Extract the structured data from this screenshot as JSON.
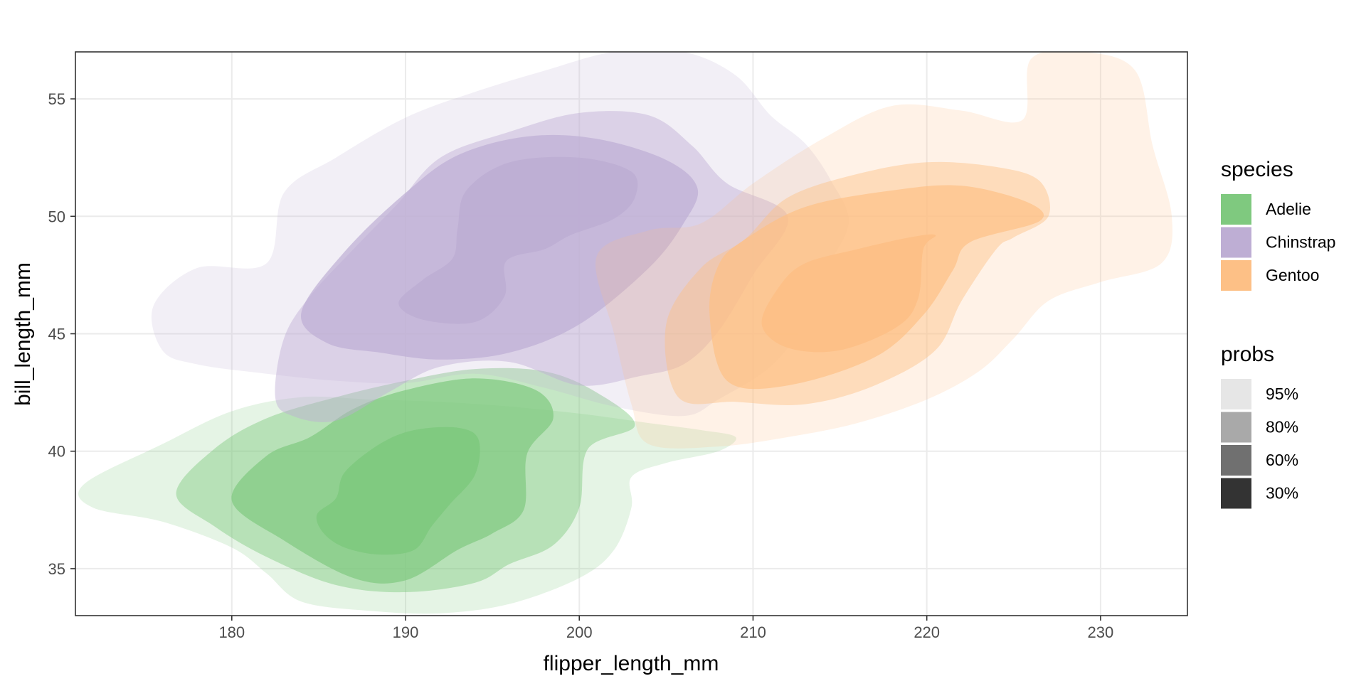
{
  "chart_data": {
    "type": "density-contour",
    "title": "",
    "xlabel": "flipper_length_mm",
    "ylabel": "bill_length_mm",
    "xlim": [
      171,
      235
    ],
    "ylim": [
      33,
      57
    ],
    "x_ticks": [
      180,
      190,
      200,
      210,
      220,
      230
    ],
    "y_ticks": [
      35,
      40,
      45,
      50,
      55
    ],
    "grid": true,
    "legend_placement": "right",
    "fill_levels": [
      {
        "label": "95%",
        "opacity": 0.2,
        "swatch_color": "#e6e6e6"
      },
      {
        "label": "80%",
        "opacity": 0.45,
        "swatch_color": "#a9a9a9"
      },
      {
        "label": "60%",
        "opacity": 0.7,
        "swatch_color": "#707070"
      },
      {
        "label": "30%",
        "opacity": 0.95,
        "swatch_color": "#333333"
      }
    ],
    "legends": [
      {
        "title": "species",
        "entries": [
          {
            "label": "Adelie",
            "color": "#7fc97f"
          },
          {
            "label": "Chinstrap",
            "color": "#beaed4"
          },
          {
            "label": "Gentoo",
            "color": "#fdc086"
          }
        ]
      },
      {
        "title": "probs",
        "entries": [
          {
            "label": "95%",
            "color": "#e6e6e6"
          },
          {
            "label": "80%",
            "color": "#a9a9a9"
          },
          {
            "label": "60%",
            "color": "#707070"
          },
          {
            "label": "30%",
            "color": "#333333"
          }
        ]
      }
    ],
    "series": [
      {
        "name": "Adelie",
        "color": "#7fc97f",
        "levels": [
          {
            "prob": "95%",
            "points": [
              [
                171.5,
                38.6
              ],
              [
                176,
                40.3
              ],
              [
                180,
                41.7
              ],
              [
                184,
                42.3
              ],
              [
                188,
                42.2
              ],
              [
                192,
                42.1
              ],
              [
                196,
                41.9
              ],
              [
                200,
                41.6
              ],
              [
                204,
                41.2
              ],
              [
                207,
                40.9
              ],
              [
                209,
                40.6
              ],
              [
                208,
                40
              ],
              [
                205,
                39.5
              ],
              [
                203,
                38.9
              ],
              [
                203,
                37.6
              ],
              [
                202,
                35.8
              ],
              [
                200,
                34.6
              ],
              [
                196,
                33.5
              ],
              [
                192,
                33.1
              ],
              [
                188,
                33.2
              ],
              [
                184,
                33.6
              ],
              [
                182,
                34.8
              ],
              [
                180,
                35.9
              ],
              [
                176,
                37
              ],
              [
                172,
                37.6
              ]
            ]
          },
          {
            "prob": "80%",
            "points": [
              [
                176.8,
                38.2
              ],
              [
                179,
                40.1
              ],
              [
                182,
                41.4
              ],
              [
                186,
                42.3
              ],
              [
                190,
                43
              ],
              [
                194,
                43.5
              ],
              [
                198,
                43.4
              ],
              [
                201,
                42.5
              ],
              [
                203.2,
                41.1
              ],
              [
                200.5,
                40.1
              ],
              [
                200,
                37.6
              ],
              [
                198.5,
                36
              ],
              [
                196,
                35.2
              ],
              [
                194,
                34.4
              ],
              [
                190,
                34
              ],
              [
                186,
                34.3
              ],
              [
                182,
                35.5
              ],
              [
                179,
                36.8
              ]
            ]
          },
          {
            "prob": "60%",
            "points": [
              [
                180,
                37.9
              ],
              [
                182,
                39.8
              ],
              [
                184.5,
                40.6
              ],
              [
                187,
                41.8
              ],
              [
                190,
                42.6
              ],
              [
                194,
                43.1
              ],
              [
                197.5,
                42.6
              ],
              [
                198.5,
                41.4
              ],
              [
                197,
                39.9
              ],
              [
                196.8,
                37.5
              ],
              [
                195,
                36.5
              ],
              [
                193,
                35.8
              ],
              [
                190,
                34.5
              ],
              [
                187,
                34.6
              ],
              [
                183,
                36.2
              ]
            ]
          },
          {
            "prob": "30%",
            "points": [
              [
                184.9,
                37.3
              ],
              [
                186,
                38
              ],
              [
                186.5,
                39.1
              ],
              [
                188.5,
                40.3
              ],
              [
                190.5,
                40.9
              ],
              [
                193,
                41
              ],
              [
                194.2,
                40.5
              ],
              [
                194,
                39
              ],
              [
                192.5,
                37.7
              ],
              [
                191.5,
                36.8
              ],
              [
                190.5,
                35.8
              ],
              [
                188.5,
                35.6
              ],
              [
                186.5,
                35.9
              ],
              [
                185.3,
                36.5
              ]
            ]
          }
        ]
      },
      {
        "name": "Chinstrap",
        "color": "#beaed4",
        "levels": [
          {
            "prob": "95%",
            "points": [
              [
                175.5,
                46.2
              ],
              [
                178,
                47.8
              ],
              [
                182,
                48
              ],
              [
                183,
                51
              ],
              [
                186,
                52.5
              ],
              [
                190,
                54.2
              ],
              [
                194,
                55.3
              ],
              [
                198,
                56.2
              ],
              [
                202,
                57
              ],
              [
                206,
                57
              ],
              [
                209,
                56
              ],
              [
                211,
                54.3
              ],
              [
                213,
                53.1
              ],
              [
                214.5,
                51.5
              ],
              [
                215.5,
                49.7
              ],
              [
                214,
                47.5
              ],
              [
                213,
                45.5
              ],
              [
                211,
                43.6
              ],
              [
                208,
                42.2
              ],
              [
                206,
                41.5
              ],
              [
                202,
                41.9
              ],
              [
                198,
                42.7
              ],
              [
                194,
                43.3
              ],
              [
                190,
                42.9
              ],
              [
                186,
                43
              ],
              [
                182,
                43.3
              ],
              [
                178,
                43.7
              ],
              [
                176,
                44.3
              ]
            ]
          },
          {
            "prob": "80%",
            "points": [
              [
                182.5,
                42.3
              ],
              [
                183,
                44.8
              ],
              [
                184.5,
                46.6
              ],
              [
                187,
                48.6
              ],
              [
                189.5,
                50.5
              ],
              [
                192,
                52.5
              ],
              [
                196,
                53.6
              ],
              [
                200,
                54.4
              ],
              [
                204,
                54.3
              ],
              [
                206.5,
                53
              ],
              [
                208.5,
                51.4
              ],
              [
                212,
                50
              ],
              [
                210,
                47.5
              ],
              [
                208,
                45.1
              ],
              [
                206,
                43.7
              ],
              [
                203.5,
                43.2
              ],
              [
                200,
                42.8
              ],
              [
                196,
                43.8
              ],
              [
                192,
                43.6
              ],
              [
                189,
                42.5
              ],
              [
                186,
                41.3
              ],
              [
                183.5,
                41.5
              ]
            ]
          },
          {
            "prob": "60%",
            "points": [
              [
                184,
                45.9
              ],
              [
                186.5,
                48.5
              ],
              [
                190,
                51
              ],
              [
                193,
                52.6
              ],
              [
                197,
                53.4
              ],
              [
                201,
                53.3
              ],
              [
                205,
                52.4
              ],
              [
                206.8,
                51.2
              ],
              [
                206,
                49.7
              ],
              [
                204,
                47.8
              ],
              [
                200,
                45.4
              ],
              [
                196,
                44.2
              ],
              [
                192,
                43.9
              ],
              [
                188.5,
                44.2
              ],
              [
                185.5,
                44.6
              ]
            ]
          },
          {
            "prob": "30%",
            "points": [
              [
                189.6,
                46.3
              ],
              [
                191,
                47.3
              ],
              [
                192.7,
                48.2
              ],
              [
                193,
                49.5
              ],
              [
                193.5,
                51.1
              ],
              [
                196,
                52.3
              ],
              [
                200,
                52.5
              ],
              [
                203,
                51.9
              ],
              [
                203.2,
                50.8
              ],
              [
                202,
                49.9
              ],
              [
                199.5,
                49.2
              ],
              [
                198,
                48.6
              ],
              [
                195.8,
                48.1
              ],
              [
                195.7,
                46.6
              ],
              [
                194,
                45.5
              ],
              [
                191,
                45.6
              ]
            ]
          }
        ]
      },
      {
        "name": "Gentoo",
        "color": "#fdc086",
        "levels": [
          {
            "prob": "95%",
            "points": [
              [
                201,
                48.3
              ],
              [
                204,
                49.4
              ],
              [
                207,
                49.7
              ],
              [
                210,
                51.4
              ],
              [
                214,
                53.3
              ],
              [
                218,
                54.7
              ],
              [
                222,
                54.5
              ],
              [
                225.5,
                54.1
              ],
              [
                226,
                56.7
              ],
              [
                229,
                57
              ],
              [
                232,
                56.2
              ],
              [
                233,
                53
              ],
              [
                234.1,
                50
              ],
              [
                233.5,
                48
              ],
              [
                230,
                47.2
              ],
              [
                227,
                46.4
              ],
              [
                225,
                44.8
              ],
              [
                223,
                43.4
              ],
              [
                220,
                42.2
              ],
              [
                216,
                41.2
              ],
              [
                212,
                40.6
              ],
              [
                208,
                40.2
              ],
              [
                204,
                40.3
              ],
              [
                203,
                42
              ],
              [
                202,
                45
              ]
            ]
          },
          {
            "prob": "80%",
            "points": [
              [
                205,
                45.4
              ],
              [
                207,
                47.8
              ],
              [
                209.5,
                49
              ],
              [
                212,
                50.8
              ],
              [
                216,
                51.8
              ],
              [
                220,
                52.3
              ],
              [
                224,
                52.1
              ],
              [
                226.5,
                51.5
              ],
              [
                227,
                50
              ],
              [
                225,
                49.1
              ],
              [
                224,
                48.6
              ],
              [
                222,
                46.4
              ],
              [
                220.5,
                44.3
              ],
              [
                217,
                42.8
              ],
              [
                213,
                42
              ],
              [
                209,
                42.1
              ],
              [
                205.7,
                42.3
              ]
            ]
          },
          {
            "prob": "60%",
            "points": [
              [
                207.5,
                45.8
              ],
              [
                208,
                47.9
              ],
              [
                209.5,
                49
              ],
              [
                213,
                50.4
              ],
              [
                218,
                51.1
              ],
              [
                222,
                51.3
              ],
              [
                225.8,
                50.6
              ],
              [
                226.5,
                49.8
              ],
              [
                222.5,
                48.9
              ],
              [
                221.5,
                47.7
              ],
              [
                219.8,
                45.8
              ],
              [
                217,
                44
              ],
              [
                212,
                42.8
              ],
              [
                208.5,
                43
              ]
            ]
          },
          {
            "prob": "30%",
            "points": [
              [
                210.5,
                45.4
              ],
              [
                211.5,
                47
              ],
              [
                213,
                48
              ],
              [
                216,
                48.6
              ],
              [
                219,
                49.1
              ],
              [
                220.5,
                49.2
              ],
              [
                219.8,
                48.6
              ],
              [
                219.5,
                46.5
              ],
              [
                218.3,
                45.3
              ],
              [
                215,
                44.3
              ],
              [
                212,
                44.4
              ]
            ]
          }
        ]
      }
    ]
  }
}
